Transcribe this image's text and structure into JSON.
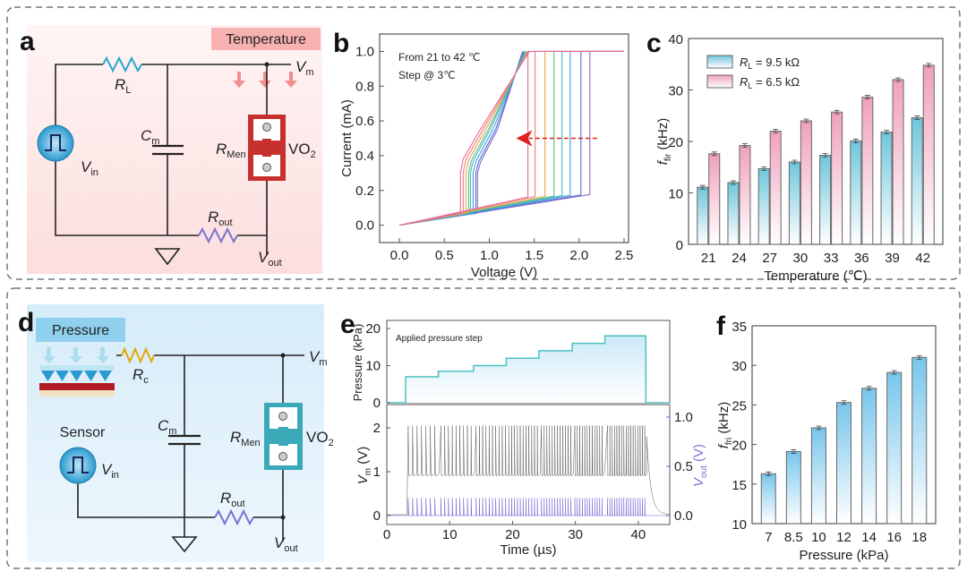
{
  "panel_labels": {
    "a": "a",
    "b": "b",
    "c": "c",
    "d": "d",
    "e": "e",
    "f": "f"
  },
  "circuit_a": {
    "stimulus": "Temperature",
    "load_resistor": {
      "main": "R",
      "sub": "L"
    },
    "capacitor": {
      "main": "C",
      "sub": "m"
    },
    "memristor": {
      "main": "R",
      "sub": "Men"
    },
    "device": {
      "main": "VO",
      "sub": "2"
    },
    "source": {
      "main": "V",
      "sub": "in"
    },
    "node_voltage": {
      "main": "V",
      "sub": "m"
    },
    "output_resistor": {
      "main": "R",
      "sub": "out"
    },
    "output_voltage": {
      "main": "V",
      "sub": "out"
    },
    "colors": {
      "load_resistor": "#2aa7d0",
      "output_resistor": "#7a72d0",
      "device": "#c8302e",
      "background": "#fde8e8"
    }
  },
  "circuit_d": {
    "stimulus": "Pressure",
    "sensor_label": "Sensor",
    "load_resistor": {
      "main": "R",
      "sub": "c"
    },
    "capacitor": {
      "main": "C",
      "sub": "m"
    },
    "memristor": {
      "main": "R",
      "sub": "Men"
    },
    "device": {
      "main": "VO",
      "sub": "2"
    },
    "source": {
      "main": "V",
      "sub": "in"
    },
    "node_voltage": {
      "main": "V",
      "sub": "m"
    },
    "output_resistor": {
      "main": "R",
      "sub": "out"
    },
    "output_voltage": {
      "main": "V",
      "sub": "out"
    },
    "colors": {
      "load_resistor": "#e0a800",
      "output_resistor": "#7a72d0",
      "device": "#3aa9b8",
      "background": "#e3f2fb"
    }
  },
  "chart_data": [
    {
      "id": "b",
      "type": "line",
      "xlabel": "Voltage (V)",
      "ylabel": "Current (mA)",
      "xlim": [
        -0.22,
        2.55
      ],
      "ylim": [
        -0.1,
        1.1
      ],
      "xticks": [
        "0.0",
        "0.5",
        "1.0",
        "1.5",
        "2.0",
        "2.5"
      ],
      "yticks": [
        "0.0",
        "0.2",
        "0.4",
        "0.6",
        "0.8",
        "1.0"
      ],
      "annotations": [
        "From 21 to 42 ℃",
        "Step @ 3℃"
      ],
      "arrow": {
        "from_V": 2.2,
        "to_V": 1.3,
        "current_mA": 0.5,
        "color": "#e02020"
      },
      "compliance_mA": 1.0,
      "series": [
        {
          "temperature_C": 21,
          "switch_on_V": 2.12,
          "switch_off_V": 0.87,
          "color": "#8a6cc4"
        },
        {
          "temperature_C": 24,
          "switch_on_V": 2.02,
          "switch_off_V": 0.85,
          "color": "#4d6ed6"
        },
        {
          "temperature_C": 27,
          "switch_on_V": 1.9,
          "switch_off_V": 0.82,
          "color": "#4a9ad8"
        },
        {
          "temperature_C": 30,
          "switch_on_V": 1.81,
          "switch_off_V": 0.79,
          "color": "#3cbcc8"
        },
        {
          "temperature_C": 33,
          "switch_on_V": 1.72,
          "switch_off_V": 0.77,
          "color": "#58c080"
        },
        {
          "temperature_C": 36,
          "switch_on_V": 1.62,
          "switch_off_V": 0.74,
          "color": "#e8a050"
        },
        {
          "temperature_C": 39,
          "switch_on_V": 1.51,
          "switch_off_V": 0.71,
          "color": "#e8807a"
        },
        {
          "temperature_C": 42,
          "switch_on_V": 1.43,
          "switch_off_V": 0.68,
          "color": "#e86a9a"
        }
      ]
    },
    {
      "id": "c",
      "type": "bar",
      "xlabel": "Temperature (℃)",
      "ylabel": {
        "main": "f",
        "sub": "fir",
        "unit": " (kHz)"
      },
      "ylim": [
        0,
        40
      ],
      "yticks": [
        "0",
        "10",
        "20",
        "30",
        "40"
      ],
      "categories": [
        "21",
        "24",
        "27",
        "30",
        "33",
        "36",
        "39",
        "42"
      ],
      "legend_position": "top-left",
      "series": [
        {
          "name": {
            "main": "R",
            "sub": "L",
            "rest": " = 9.5 kΩ"
          },
          "values": [
            11.1,
            12.0,
            14.7,
            16.0,
            17.3,
            20.1,
            21.8,
            24.6
          ],
          "color": "#7ccfe0"
        },
        {
          "name": {
            "main": "R",
            "sub": "L",
            "rest": " = 6.5 kΩ"
          },
          "values": [
            17.6,
            19.2,
            22.0,
            24.0,
            25.7,
            28.6,
            32.0,
            34.8
          ],
          "color": "#f2a9c2"
        }
      ]
    },
    {
      "id": "e",
      "type": "line",
      "xlabel": "Time (µs)",
      "xlim": [
        0,
        45
      ],
      "xticks": [
        "0",
        "10",
        "20",
        "30",
        "40"
      ],
      "top": {
        "ylabel": "Pressure (kPa)",
        "ylim": [
          0,
          20
        ],
        "yticks": [
          "0",
          "10",
          "20"
        ],
        "legend": "Applied pressure step",
        "color": "#4cc0c0",
        "steps": [
          {
            "t_start": 0,
            "t_end": 3.0,
            "pressure": 0
          },
          {
            "t_start": 3.0,
            "t_end": 8.2,
            "pressure": 7
          },
          {
            "t_start": 8.2,
            "t_end": 13.8,
            "pressure": 8.5
          },
          {
            "t_start": 13.8,
            "t_end": 19.0,
            "pressure": 10
          },
          {
            "t_start": 19.0,
            "t_end": 24.2,
            "pressure": 12
          },
          {
            "t_start": 24.2,
            "t_end": 29.5,
            "pressure": 14
          },
          {
            "t_start": 29.5,
            "t_end": 34.7,
            "pressure": 16
          },
          {
            "t_start": 34.7,
            "t_end": 41.2,
            "pressure": 18
          },
          {
            "t_start": 41.2,
            "t_end": 45,
            "pressure": 0
          }
        ]
      },
      "bottom": {
        "ylabel_left": {
          "main": "V",
          "sub": "m",
          "unit": " (V)"
        },
        "ylabel_right": {
          "main": "V",
          "sub": "out",
          "unit": " (V)"
        },
        "ylim_left": [
          -0.1,
          2.3
        ],
        "ylim_right": [
          -0.05,
          1.05
        ],
        "yticks_left": [
          "0",
          "1",
          "2"
        ],
        "yticks_right": [
          "0.0",
          "0.5",
          "1.0"
        ],
        "Vm_range_V": [
          0.9,
          2.05
        ],
        "Vout_peak_V": 0.18,
        "Vm_color": "#555555",
        "Vout_color": "#6a5ad0"
      }
    },
    {
      "id": "f",
      "type": "bar",
      "xlabel": "Pressure (kPa)",
      "ylabel": {
        "main": "f",
        "sub": "fri",
        "unit": " (kHz)"
      },
      "ylim": [
        10,
        35
      ],
      "yticks": [
        "10",
        "15",
        "20",
        "25",
        "30",
        "35"
      ],
      "categories": [
        "7",
        "8.5",
        "10",
        "12",
        "14",
        "16",
        "18"
      ],
      "series": [
        {
          "values": [
            16.3,
            19.1,
            22.1,
            25.3,
            27.1,
            29.1,
            31.0
          ],
          "color": "#7cc8ea"
        }
      ]
    }
  ]
}
